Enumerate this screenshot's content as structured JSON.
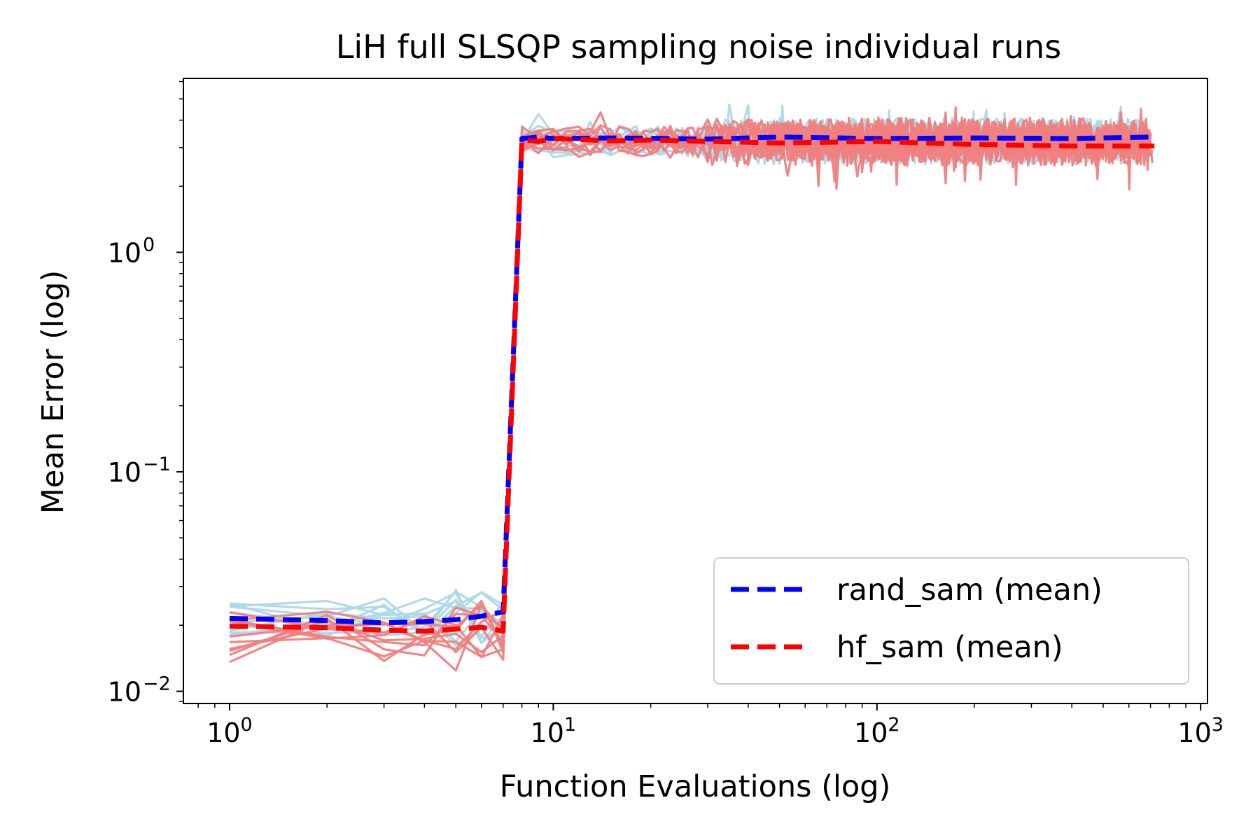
{
  "chart_data": {
    "type": "line",
    "title": "LiH full SLSQP sampling noise individual runs",
    "xlabel": "Function Evaluations (log)",
    "ylabel": "Mean Error (log)",
    "xscale": "log",
    "yscale": "log",
    "xlim": [
      0.72,
      1050
    ],
    "ylim": [
      0.0088,
      6.2
    ],
    "x_ticks": [
      {
        "value": 1,
        "base": "10",
        "exp": "0"
      },
      {
        "value": 10,
        "base": "10",
        "exp": "1"
      },
      {
        "value": 100,
        "base": "10",
        "exp": "2"
      },
      {
        "value": 1000,
        "base": "10",
        "exp": "3"
      }
    ],
    "y_ticks": [
      {
        "value": 0.01,
        "base": "10",
        "exp": "−2"
      },
      {
        "value": 0.1,
        "base": "10",
        "exp": "−1"
      },
      {
        "value": 1,
        "base": "10",
        "exp": "0"
      }
    ],
    "legend": {
      "placement": "lower-right",
      "entries": [
        {
          "label": "rand_sam (mean)",
          "color": "#0000ff",
          "style": "dashed"
        },
        {
          "label": "hf_sam (mean)",
          "color": "#ff0000",
          "style": "dashed"
        }
      ]
    },
    "series": [
      {
        "name": "rand_sam (mean)",
        "group": "rand_sam",
        "color": "#0000ff",
        "style": "dashed",
        "segments": [
          {
            "x": [
              1,
              2,
              3,
              4,
              5,
              6,
              7,
              8,
              9,
              10,
              15,
              20,
              30,
              50,
              100,
              200,
              400,
              700
            ],
            "y": [
              0.0215,
              0.021,
              0.0205,
              0.0208,
              0.0212,
              0.022,
              0.023,
              3.3,
              3.35,
              3.3,
              3.32,
              3.31,
              3.28,
              3.35,
              3.3,
              3.32,
              3.3,
              3.35
            ]
          }
        ]
      },
      {
        "name": "hf_sam (mean)",
        "group": "hf_sam",
        "color": "#ff0000",
        "style": "dashed",
        "segments": [
          {
            "x": [
              1,
              2,
              3,
              4,
              5,
              6,
              7,
              8,
              9,
              10,
              15,
              20,
              30,
              50,
              100,
              200,
              400,
              720
            ],
            "y": [
              0.0198,
              0.0195,
              0.019,
              0.0188,
              0.0192,
              0.0196,
              0.0188,
              3.25,
              3.2,
              3.3,
              3.22,
              3.25,
              3.2,
              3.15,
              3.2,
              3.1,
              3.05,
              3.05
            ]
          }
        ]
      }
    ],
    "individual_runs": [
      {
        "group": "rand_sam",
        "color": "#add8e6",
        "count": 10,
        "early_range": [
          0.016,
          0.029
        ],
        "late_range": [
          2.5,
          4.8
        ],
        "x_end": 700
      },
      {
        "group": "hf_sam",
        "color": "#f08080",
        "count": 10,
        "early_range": [
          0.012,
          0.026
        ],
        "late_range": [
          1.9,
          4.6
        ],
        "x_end": 720
      }
    ]
  }
}
